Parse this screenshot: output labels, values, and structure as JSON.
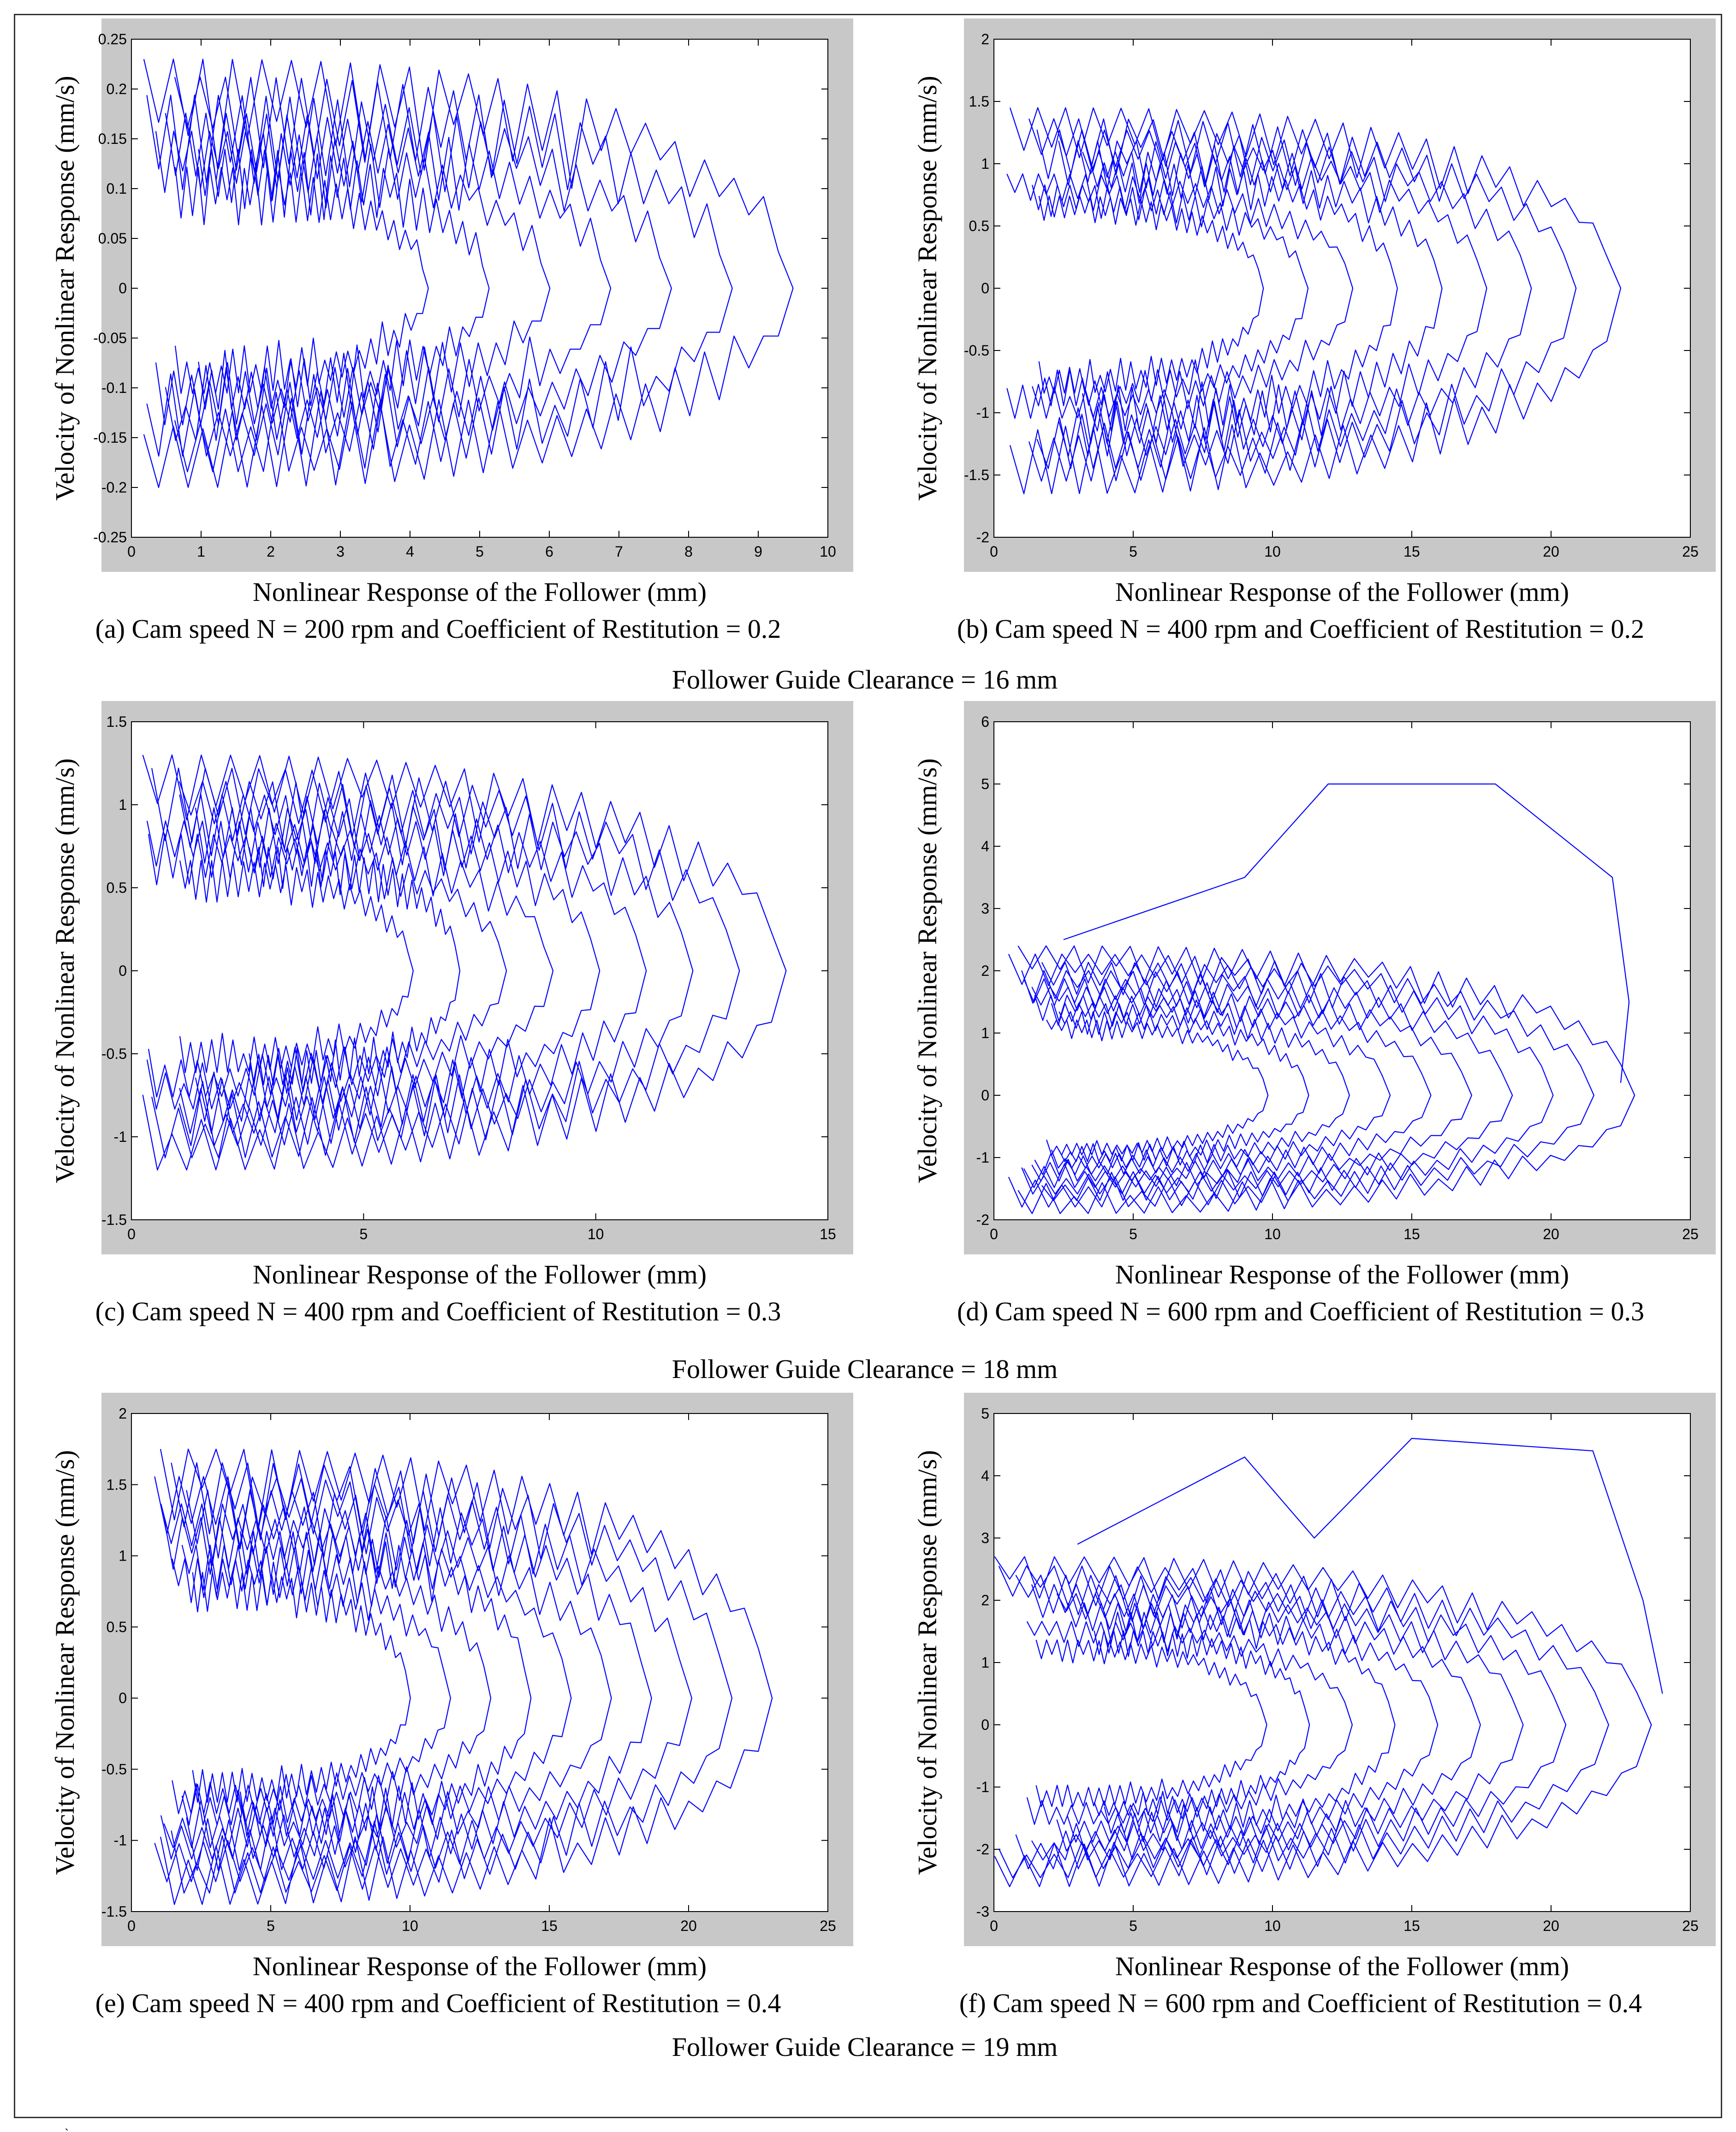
{
  "page": {
    "groups": [
      {
        "caption": "Follower Guide Clearance = 16 mm"
      },
      {
        "caption": "Follower  Guide Clearance = 18 mm"
      },
      {
        "caption": "Follower Guide Clearance = 19 mm"
      }
    ],
    "stray_mark": "ˏ"
  },
  "colors": {
    "line": "#0000ff",
    "frame_bg": "#c8c8c8",
    "plot_bg": "#ffffff"
  },
  "chart_data": [
    {
      "id": "a",
      "type": "line",
      "title": "",
      "caption": "(a) Cam speed N = 200 rpm and Coefficient of Restitution = 0.2",
      "xlabel": "Nonlinear Response of the Follower (mm)",
      "ylabel": "Velocity of Nonlinear Response (mm/s)",
      "xlim": [
        0,
        10
      ],
      "ylim": [
        -0.25,
        0.25
      ],
      "xticks": [
        0,
        1,
        2,
        3,
        4,
        5,
        6,
        7,
        8,
        9,
        10
      ],
      "yticks": [
        -0.25,
        -0.2,
        -0.15,
        -0.1,
        -0.05,
        0,
        0.05,
        0.1,
        0.15,
        0.2,
        0.25
      ],
      "yticklabels": [
        "-0.25",
        "-0.2",
        "-0.15",
        "-0.1",
        "-0.05",
        "0",
        "0.05",
        "0.1",
        "0.15",
        "0.2",
        "0.25"
      ],
      "trajectory": {
        "x_min": 0.1,
        "x_max": 9.5,
        "v_peak": 0.23,
        "v_trough": -0.2,
        "loops": 7,
        "seed": 11,
        "spiky": 0.9,
        "staircase": true
      }
    },
    {
      "id": "b",
      "type": "line",
      "title": "",
      "caption": "(b) Cam speed N = 400 rpm and Coefficient of Restitution = 0.2",
      "xlabel": "Nonlinear Response of the Follower (mm)",
      "ylabel": "Velocity of Nonlinear Response (mm/s)",
      "xlim": [
        0,
        25
      ],
      "ylim": [
        -2,
        2
      ],
      "xticks": [
        0,
        5,
        10,
        15,
        20,
        25
      ],
      "yticks": [
        -2,
        -1.5,
        -1,
        -0.5,
        0,
        0.5,
        1,
        1.5,
        2
      ],
      "yticklabels": [
        "-2",
        "-1.5",
        "-1",
        "-0.5",
        "0",
        "0.5",
        "1",
        "1.5",
        "2"
      ],
      "trajectory": {
        "x_min": 0.3,
        "x_max": 22.5,
        "v_peak": 1.45,
        "v_trough": -1.65,
        "loops": 9,
        "seed": 23,
        "spiky": 0.6,
        "staircase": false
      }
    },
    {
      "id": "c",
      "type": "line",
      "title": "",
      "caption": "(c) Cam speed N = 400 rpm and Coefficient of Restitution = 0.3",
      "xlabel": "Nonlinear Response of the Follower (mm)",
      "ylabel": "Velocity of Nonlinear Response (mm/s)",
      "xlim": [
        0,
        15
      ],
      "ylim": [
        -1.5,
        1.5
      ],
      "xticks": [
        0,
        5,
        10,
        15
      ],
      "yticks": [
        -1.5,
        -1,
        -0.5,
        0,
        0.5,
        1,
        1.5
      ],
      "yticklabels": [
        "-1.5",
        "-1",
        "-0.5",
        "0",
        "0.5",
        "1",
        "1.5"
      ],
      "trajectory": {
        "x_min": 0.2,
        "x_max": 14.1,
        "v_peak": 1.3,
        "v_trough": -1.2,
        "loops": 9,
        "seed": 37,
        "spiky": 0.7,
        "staircase": false
      }
    },
    {
      "id": "d",
      "type": "line",
      "title": "",
      "caption": "(d) Cam speed N = 600 rpm and Coefficient of Restitution = 0.3",
      "xlabel": "Nonlinear Response of the Follower (mm)",
      "ylabel": "Velocity of Nonlinear Response (mm/s)",
      "xlim": [
        0,
        25
      ],
      "ylim": [
        -2,
        6
      ],
      "xticks": [
        0,
        5,
        10,
        15,
        20,
        25
      ],
      "yticks": [
        -2,
        -1,
        0,
        1,
        2,
        3,
        4,
        5,
        6
      ],
      "yticklabels": [
        "-2",
        "-1",
        "0",
        "1",
        "2",
        "3",
        "4",
        "5",
        "6"
      ],
      "trajectory": {
        "x_min": 0.5,
        "x_max": 23.0,
        "v_peak": 2.4,
        "v_trough": -1.9,
        "loops": 10,
        "seed": 41,
        "spiky": 0.5,
        "staircase": false
      },
      "outlier": {
        "x": [
          2.5,
          9,
          12,
          18,
          22.2,
          22.8,
          22.5
        ],
        "y": [
          2.5,
          3.5,
          5.0,
          5.0,
          3.5,
          1.5,
          0.2
        ]
      }
    },
    {
      "id": "e",
      "type": "line",
      "title": "",
      "caption": "(e) Cam speed N = 400 rpm and Coefficient of Restitution = 0.4",
      "xlabel": "Nonlinear Response of the Follower (mm)",
      "ylabel": "Velocity of Nonlinear Response (mm/s)",
      "xlim": [
        0,
        25
      ],
      "ylim": [
        -1.5,
        2
      ],
      "xticks": [
        0,
        5,
        10,
        15,
        20,
        25
      ],
      "yticks": [
        -1.5,
        -1,
        -0.5,
        0,
        0.5,
        1,
        1.5,
        2
      ],
      "yticklabels": [
        "-1.5",
        "-1",
        "-0.5",
        "0",
        "0.5",
        "1",
        "1.5",
        "2"
      ],
      "trajectory": {
        "x_min": 0.8,
        "x_max": 23.0,
        "v_peak": 1.75,
        "v_trough": -1.45,
        "loops": 10,
        "seed": 53,
        "spiky": 0.6,
        "staircase": false
      }
    },
    {
      "id": "f",
      "type": "line",
      "title": "",
      "caption": "(f) Cam speed N = 600 rpm and Coefficient of Restitution = 0.4",
      "xlabel": "Nonlinear Response of the Follower (mm)",
      "ylabel": "Velocity of Nonlinear Response (mm/s)",
      "xlim": [
        0,
        25
      ],
      "ylim": [
        -3,
        5
      ],
      "xticks": [
        0,
        5,
        10,
        15,
        20,
        25
      ],
      "yticks": [
        -3,
        -2,
        -1,
        0,
        1,
        2,
        3,
        4,
        5
      ],
      "yticklabels": [
        "-3",
        "-2",
        "-1",
        "0",
        "1",
        "2",
        "3",
        "4",
        "5"
      ],
      "trajectory": {
        "x_min": 0.0,
        "x_max": 23.6,
        "v_peak": 2.7,
        "v_trough": -2.6,
        "loops": 10,
        "seed": 67,
        "spiky": 0.5,
        "staircase": false
      },
      "outlier": {
        "x": [
          3,
          9,
          11.5,
          15,
          21.5,
          23.3,
          24
        ],
        "y": [
          2.9,
          4.3,
          3.0,
          4.6,
          4.4,
          2.0,
          0.5
        ]
      }
    }
  ]
}
